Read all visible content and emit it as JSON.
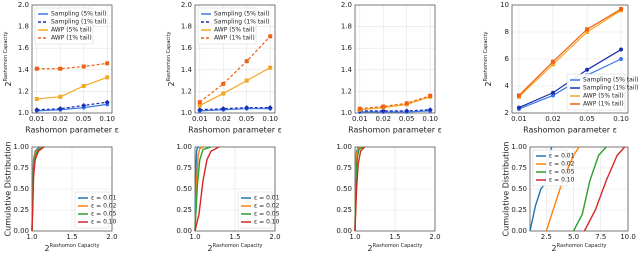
{
  "chart_data": [
    {
      "type": "line",
      "x_label": "Rashomon parameter ε",
      "y_label": "2",
      "y_label_sup": "Rashomon Capacity",
      "categories": [
        "0.01",
        "0.02",
        "0.05",
        "0.10"
      ],
      "ylim": [
        1.0,
        2.0
      ],
      "yticks": [
        {
          "value": 1.0,
          "label": "1.0"
        },
        {
          "value": 1.2,
          "label": "1.2"
        },
        {
          "value": 1.4,
          "label": "1.4"
        },
        {
          "value": 1.6,
          "label": "1.6"
        },
        {
          "value": 1.8,
          "label": "1.8"
        },
        {
          "value": 2.0,
          "label": "2.0"
        }
      ],
      "grid": true,
      "legend": "upper left",
      "series": [
        {
          "name": "Sampling (5% tail)",
          "color": "#3b78e7",
          "dash": false,
          "marker": "circle",
          "values": [
            1.02,
            1.03,
            1.05,
            1.08
          ]
        },
        {
          "name": "Sampling (1% tail)",
          "color": "#1a2fb0",
          "dash": true,
          "marker": "diamond",
          "values": [
            1.03,
            1.04,
            1.07,
            1.1
          ]
        },
        {
          "name": "AWP (5% tail)",
          "color": "#f5a623",
          "dash": false,
          "marker": "square",
          "values": [
            1.13,
            1.15,
            1.25,
            1.33
          ]
        },
        {
          "name": "AWP (1% tail)",
          "color": "#f06010",
          "dash": true,
          "marker": "square",
          "values": [
            1.41,
            1.41,
            1.43,
            1.46
          ]
        }
      ]
    },
    {
      "type": "line",
      "x_label": "Rashomon parameter ε",
      "y_label": "2",
      "y_label_sup": "Rashomon Capacity",
      "categories": [
        "0.01",
        "0.02",
        "0.05",
        "0.10"
      ],
      "ylim": [
        1.0,
        2.0
      ],
      "yticks": [
        {
          "value": 1.0,
          "label": "1.0"
        },
        {
          "value": 1.2,
          "label": "1.2"
        },
        {
          "value": 1.4,
          "label": "1.4"
        },
        {
          "value": 1.6,
          "label": "1.6"
        },
        {
          "value": 1.8,
          "label": "1.8"
        },
        {
          "value": 2.0,
          "label": "2.0"
        }
      ],
      "grid": true,
      "legend": "upper left",
      "series": [
        {
          "name": "Sampling (5% tail)",
          "color": "#3b78e7",
          "dash": false,
          "marker": "circle",
          "values": [
            1.02,
            1.03,
            1.04,
            1.04
          ]
        },
        {
          "name": "Sampling (1% tail)",
          "color": "#1a2fb0",
          "dash": true,
          "marker": "diamond",
          "values": [
            1.03,
            1.04,
            1.05,
            1.05
          ]
        },
        {
          "name": "AWP (5% tail)",
          "color": "#f5a623",
          "dash": false,
          "marker": "square",
          "values": [
            1.07,
            1.18,
            1.3,
            1.42
          ]
        },
        {
          "name": "AWP (1% tail)",
          "color": "#f06010",
          "dash": true,
          "marker": "square",
          "values": [
            1.1,
            1.27,
            1.48,
            1.71
          ]
        }
      ]
    },
    {
      "type": "line",
      "x_label": "Rashomon parameter ε",
      "categories": [
        "0.01",
        "0.02",
        "0.05",
        "0.10"
      ],
      "ylim": [
        1.0,
        2.0
      ],
      "yticks": [
        {
          "value": 1.0,
          "label": "1.0"
        },
        {
          "value": 1.2,
          "label": "1.2"
        },
        {
          "value": 1.4,
          "label": "1.4"
        },
        {
          "value": 1.6,
          "label": "1.6"
        },
        {
          "value": 1.8,
          "label": "1.8"
        },
        {
          "value": 2.0,
          "label": "2.0"
        }
      ],
      "grid": true,
      "series": [
        {
          "color": "#3b78e7",
          "dash": false,
          "marker": "circle",
          "values": [
            1.01,
            1.01,
            1.01,
            1.02
          ]
        },
        {
          "color": "#1a2fb0",
          "dash": true,
          "marker": "diamond",
          "values": [
            1.02,
            1.02,
            1.02,
            1.03
          ]
        },
        {
          "color": "#f5a623",
          "dash": false,
          "marker": "square",
          "values": [
            1.03,
            1.05,
            1.08,
            1.15
          ]
        },
        {
          "color": "#f06010",
          "dash": true,
          "marker": "square",
          "values": [
            1.04,
            1.06,
            1.09,
            1.16
          ]
        }
      ]
    },
    {
      "type": "line",
      "x_label": "Rashomon parameter ε",
      "y_label": "2",
      "y_label_sup": "Rashomon Capacity",
      "categories": [
        "0.01",
        "0.02",
        "0.05",
        "0.10"
      ],
      "ylim": [
        2,
        10
      ],
      "yticks": [
        2,
        4,
        6,
        8,
        10
      ],
      "grid": true,
      "legend": "lower right",
      "series": [
        {
          "name": "Sampling (5% tail)",
          "color": "#3b78e7",
          "dash": false,
          "marker": "circle",
          "values": [
            2.3,
            3.3,
            4.8,
            6.0
          ]
        },
        {
          "name": "Sampling (1% tail)",
          "color": "#1a2fb0",
          "dash": false,
          "marker": "circle",
          "values": [
            2.4,
            3.5,
            5.2,
            6.7
          ]
        },
        {
          "name": "AWP (5% tail)",
          "color": "#f5a623",
          "dash": false,
          "marker": "square",
          "values": [
            3.2,
            5.6,
            8.0,
            9.6
          ]
        },
        {
          "name": "AWP (1% tail)",
          "color": "#f06010",
          "dash": false,
          "marker": "square",
          "values": [
            3.3,
            5.8,
            8.2,
            9.7
          ]
        }
      ]
    },
    {
      "type": "cdf",
      "x_label": "2",
      "x_label_sup": "Rashomon Capacity",
      "y_label": "Cumulative Distribution",
      "xlim": [
        1.0,
        2.0
      ],
      "xticks": [
        {
          "value": 1.0,
          "label": "1.0"
        },
        {
          "value": 1.5,
          "label": "1.5"
        },
        {
          "value": 2.0,
          "label": "2.0"
        }
      ],
      "ylim": [
        0,
        1
      ],
      "yticks": [
        {
          "value": 0,
          "label": "0.00"
        },
        {
          "value": 0.25,
          "label": "0.25"
        },
        {
          "value": 0.5,
          "label": "0.50"
        },
        {
          "value": 0.75,
          "label": "0.75"
        },
        {
          "value": 1,
          "label": "1.00"
        }
      ],
      "grid": true,
      "legend": "lower right",
      "series": [
        {
          "name": "ε = 0.01",
          "color": "#1f77b4",
          "x": [
            1.0,
            1.01,
            1.02,
            1.04,
            1.08,
            1.15
          ],
          "values": [
            0,
            0.6,
            0.85,
            0.95,
            0.99,
            1
          ]
        },
        {
          "name": "ε = 0.02",
          "color": "#ff7f0e",
          "x": [
            1.0,
            1.01,
            1.02,
            1.04,
            1.08,
            1.15
          ],
          "values": [
            0,
            0.5,
            0.8,
            0.93,
            0.98,
            1
          ]
        },
        {
          "name": "ε = 0.05",
          "color": "#2ca02c",
          "x": [
            1.0,
            1.01,
            1.02,
            1.04,
            1.08,
            1.15
          ],
          "values": [
            0,
            0.4,
            0.75,
            0.9,
            0.97,
            1
          ]
        },
        {
          "name": "ε = 0.10",
          "color": "#d62728",
          "x": [
            1.0,
            1.01,
            1.02,
            1.04,
            1.08,
            1.15
          ],
          "values": [
            0,
            0.3,
            0.65,
            0.85,
            0.95,
            1
          ]
        }
      ]
    },
    {
      "type": "cdf",
      "x_label": "2",
      "x_label_sup": "Rashomon Capacity",
      "xlim": [
        1.0,
        2.0
      ],
      "xticks": [
        {
          "value": 1.0,
          "label": "1.0"
        },
        {
          "value": 1.5,
          "label": "1.5"
        },
        {
          "value": 2.0,
          "label": "2.0"
        }
      ],
      "ylim": [
        0,
        1
      ],
      "yticks": [
        {
          "value": 0,
          "label": "0.00"
        },
        {
          "value": 0.25,
          "label": "0.25"
        },
        {
          "value": 0.5,
          "label": "0.50"
        },
        {
          "value": 0.75,
          "label": "0.75"
        },
        {
          "value": 1,
          "label": "1.00"
        }
      ],
      "grid": true,
      "legend": "lower right",
      "series": [
        {
          "name": "ε = 0.01",
          "color": "#1f77b4",
          "x": [
            1.0,
            1.01,
            1.02,
            1.03,
            1.05
          ],
          "values": [
            0,
            0.7,
            0.95,
            0.99,
            1
          ]
        },
        {
          "name": "ε = 0.02",
          "color": "#ff7f0e",
          "x": [
            1.0,
            1.02,
            1.04,
            1.06,
            1.1
          ],
          "values": [
            0,
            0.6,
            0.9,
            0.98,
            1
          ]
        },
        {
          "name": "ε = 0.05",
          "color": "#2ca02c",
          "x": [
            1.0,
            1.03,
            1.06,
            1.1,
            1.2
          ],
          "values": [
            0,
            0.55,
            0.85,
            0.97,
            1
          ]
        },
        {
          "name": "ε = 0.10",
          "color": "#d62728",
          "x": [
            1.0,
            1.05,
            1.1,
            1.15,
            1.2,
            1.3
          ],
          "values": [
            0,
            0.2,
            0.6,
            0.85,
            0.95,
            1
          ]
        }
      ]
    },
    {
      "type": "cdf",
      "x_label": "2",
      "x_label_sup": "Rashomon Capacity",
      "xlim": [
        1.0,
        2.0
      ],
      "xticks": [
        {
          "value": 1.0,
          "label": "1.0"
        },
        {
          "value": 1.5,
          "label": "1.5"
        },
        {
          "value": 2.0,
          "label": "2.0"
        }
      ],
      "ylim": [
        0,
        1
      ],
      "yticks": [
        {
          "value": 0,
          "label": "0.00"
        },
        {
          "value": 0.25,
          "label": "0.25"
        },
        {
          "value": 0.5,
          "label": "0.50"
        },
        {
          "value": 0.75,
          "label": "0.75"
        },
        {
          "value": 1,
          "label": "1.00"
        }
      ],
      "grid": true,
      "series": [
        {
          "color": "#1f77b4",
          "x": [
            1.0,
            1.01,
            1.02,
            1.04,
            1.08
          ],
          "values": [
            0,
            0.8,
            0.95,
            0.99,
            1
          ]
        },
        {
          "color": "#ff7f0e",
          "x": [
            1.0,
            1.01,
            1.02,
            1.04,
            1.08
          ],
          "values": [
            0,
            0.7,
            0.92,
            0.98,
            1
          ]
        },
        {
          "color": "#2ca02c",
          "x": [
            1.0,
            1.01,
            1.03,
            1.05,
            1.1
          ],
          "values": [
            0,
            0.6,
            0.88,
            0.97,
            1
          ]
        },
        {
          "color": "#d62728",
          "x": [
            1.0,
            1.02,
            1.04,
            1.07,
            1.12
          ],
          "values": [
            0,
            0.5,
            0.8,
            0.95,
            1
          ]
        }
      ]
    },
    {
      "type": "cdf",
      "x_label": "2",
      "x_label_sup": "Rashomon Capacity",
      "y_label": "Cumulative Distribution",
      "xlim": [
        1,
        10
      ],
      "xticks": [
        2.5,
        {
          "value": 5.0,
          "label": "5.0"
        },
        7.5,
        {
          "value": 10.0,
          "label": "10.0"
        }
      ],
      "ylim": [
        0,
        1
      ],
      "yticks": [
        {
          "value": 0,
          "label": "0.00"
        },
        {
          "value": 0.25,
          "label": "0.25"
        },
        {
          "value": 0.5,
          "label": "0.50"
        },
        {
          "value": 0.75,
          "label": "0.75"
        },
        {
          "value": 1,
          "label": "1.00"
        }
      ],
      "grid": true,
      "legend": "upper left",
      "series": [
        {
          "name": "ε = 0.01",
          "color": "#1f77b4",
          "x": [
            1,
            1.5,
            2,
            2.3,
            2.6,
            3
          ],
          "values": [
            0,
            0.3,
            0.5,
            0.55,
            0.85,
            1
          ]
        },
        {
          "name": "ε = 0.02",
          "color": "#ff7f0e",
          "x": [
            2.5,
            3,
            4,
            5,
            5.5
          ],
          "values": [
            0,
            0.2,
            0.6,
            0.9,
            1
          ]
        },
        {
          "name": "ε = 0.05",
          "color": "#2ca02c",
          "x": [
            5,
            5.8,
            6.5,
            7.3,
            8
          ],
          "values": [
            0,
            0.2,
            0.6,
            0.9,
            1
          ]
        },
        {
          "name": "ε = 0.10",
          "color": "#d62728",
          "x": [
            6,
            7,
            8,
            9,
            9.7
          ],
          "values": [
            0,
            0.25,
            0.6,
            0.9,
            1
          ]
        }
      ]
    }
  ]
}
